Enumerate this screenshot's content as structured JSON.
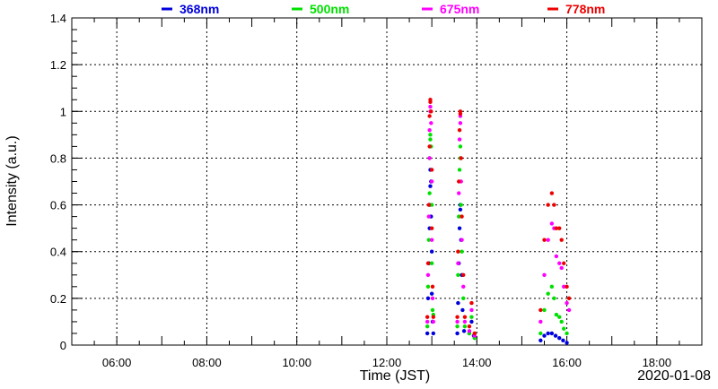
{
  "chart_data": {
    "type": "scatter",
    "title": "",
    "xlabel": "Time (JST)",
    "ylabel": "Intensity (a.u.)",
    "date_label": "2020-01-08",
    "xlim": [
      "05:00",
      "19:00"
    ],
    "ylim": [
      0,
      1.4
    ],
    "x_ticks": [
      "06:00",
      "08:00",
      "10:00",
      "12:00",
      "14:00",
      "16:00",
      "18:00"
    ],
    "y_ticks": [
      "0",
      "0.2",
      "0.4",
      "0.6",
      "0.8",
      "1",
      "1.2",
      "1.4"
    ],
    "grid": true,
    "legend_position": "top",
    "series": [
      {
        "name": "368nm",
        "color": "#0000dd",
        "points": [
          [
            "12:54",
            0.05
          ],
          [
            "12:55",
            0.2
          ],
          [
            "12:56",
            0.35
          ],
          [
            "12:57",
            0.5
          ],
          [
            "12:57",
            0.6
          ],
          [
            "12:58",
            0.68
          ],
          [
            "12:58",
            0.75
          ],
          [
            "12:59",
            0.7
          ],
          [
            "12:59",
            0.55
          ],
          [
            "13:00",
            0.4
          ],
          [
            "13:00",
            0.22
          ],
          [
            "13:01",
            0.1
          ],
          [
            "13:02",
            0.05
          ],
          [
            "13:34",
            0.05
          ],
          [
            "13:35",
            0.18
          ],
          [
            "13:36",
            0.35
          ],
          [
            "13:37",
            0.5
          ],
          [
            "13:38",
            0.6
          ],
          [
            "13:38",
            0.58
          ],
          [
            "13:39",
            0.45
          ],
          [
            "13:40",
            0.3
          ],
          [
            "13:41",
            0.15
          ],
          [
            "13:43",
            0.06
          ],
          [
            "13:50",
            0.05
          ],
          [
            "13:53",
            0.1
          ],
          [
            "13:56",
            0.04
          ],
          [
            "15:25",
            0.02
          ],
          [
            "15:30",
            0.04
          ],
          [
            "15:35",
            0.05
          ],
          [
            "15:40",
            0.05
          ],
          [
            "15:45",
            0.04
          ],
          [
            "15:50",
            0.03
          ],
          [
            "15:55",
            0.02
          ],
          [
            "16:00",
            0.01
          ]
        ]
      },
      {
        "name": "500nm",
        "color": "#00e000",
        "points": [
          [
            "12:54",
            0.08
          ],
          [
            "12:55",
            0.25
          ],
          [
            "12:56",
            0.45
          ],
          [
            "12:57",
            0.65
          ],
          [
            "12:57",
            0.8
          ],
          [
            "12:58",
            0.88
          ],
          [
            "12:58",
            0.9
          ],
          [
            "12:59",
            0.85
          ],
          [
            "13:00",
            0.6
          ],
          [
            "13:00",
            0.35
          ],
          [
            "13:01",
            0.15
          ],
          [
            "13:02",
            0.13
          ],
          [
            "13:34",
            0.08
          ],
          [
            "13:35",
            0.3
          ],
          [
            "13:36",
            0.55
          ],
          [
            "13:37",
            0.75
          ],
          [
            "13:38",
            0.85
          ],
          [
            "13:38",
            0.8
          ],
          [
            "13:39",
            0.6
          ],
          [
            "13:40",
            0.4
          ],
          [
            "13:42",
            0.2
          ],
          [
            "13:44",
            0.08
          ],
          [
            "13:50",
            0.05
          ],
          [
            "13:53",
            0.12
          ],
          [
            "13:57",
            0.03
          ],
          [
            "15:25",
            0.05
          ],
          [
            "15:30",
            0.15
          ],
          [
            "15:35",
            0.22
          ],
          [
            "15:40",
            0.25
          ],
          [
            "15:43",
            0.2
          ],
          [
            "15:46",
            0.13
          ],
          [
            "15:50",
            0.12
          ],
          [
            "15:53",
            0.1
          ],
          [
            "15:56",
            0.07
          ],
          [
            "16:00",
            0.05
          ]
        ]
      },
      {
        "name": "675nm",
        "color": "#ff00ff",
        "points": [
          [
            "12:54",
            0.1
          ],
          [
            "12:55",
            0.3
          ],
          [
            "12:56",
            0.55
          ],
          [
            "12:57",
            0.8
          ],
          [
            "12:57",
            0.92
          ],
          [
            "12:58",
            1.0
          ],
          [
            "12:58",
            1.02
          ],
          [
            "12:59",
            0.95
          ],
          [
            "13:00",
            0.7
          ],
          [
            "13:00",
            0.45
          ],
          [
            "13:01",
            0.2
          ],
          [
            "13:02",
            0.1
          ],
          [
            "13:34",
            0.1
          ],
          [
            "13:35",
            0.35
          ],
          [
            "13:36",
            0.65
          ],
          [
            "13:37",
            0.88
          ],
          [
            "13:38",
            0.98
          ],
          [
            "13:38",
            0.95
          ],
          [
            "13:39",
            0.7
          ],
          [
            "13:40",
            0.45
          ],
          [
            "13:42",
            0.25
          ],
          [
            "13:44",
            0.1
          ],
          [
            "13:50",
            0.06
          ],
          [
            "13:53",
            0.15
          ],
          [
            "13:57",
            0.04
          ],
          [
            "15:25",
            0.1
          ],
          [
            "15:30",
            0.3
          ],
          [
            "15:35",
            0.45
          ],
          [
            "15:40",
            0.52
          ],
          [
            "15:43",
            0.5
          ],
          [
            "15:46",
            0.38
          ],
          [
            "15:50",
            0.35
          ],
          [
            "15:53",
            0.33
          ],
          [
            "15:56",
            0.25
          ],
          [
            "16:00",
            0.18
          ],
          [
            "16:03",
            0.15
          ]
        ]
      },
      {
        "name": "778nm",
        "color": "#ee0000",
        "points": [
          [
            "12:54",
            0.12
          ],
          [
            "12:55",
            0.35
          ],
          [
            "12:56",
            0.6
          ],
          [
            "12:57",
            0.85
          ],
          [
            "12:57",
            0.98
          ],
          [
            "12:58",
            1.04
          ],
          [
            "12:58",
            1.05
          ],
          [
            "12:59",
            1.0
          ],
          [
            "13:00",
            0.75
          ],
          [
            "13:00",
            0.5
          ],
          [
            "13:01",
            0.25
          ],
          [
            "13:02",
            0.12
          ],
          [
            "13:34",
            0.12
          ],
          [
            "13:35",
            0.4
          ],
          [
            "13:36",
            0.7
          ],
          [
            "13:37",
            0.92
          ],
          [
            "13:38",
            1.0
          ],
          [
            "13:38",
            0.99
          ],
          [
            "13:39",
            0.8
          ],
          [
            "13:40",
            0.55
          ],
          [
            "13:42",
            0.3
          ],
          [
            "13:44",
            0.12
          ],
          [
            "13:50",
            0.08
          ],
          [
            "13:53",
            0.18
          ],
          [
            "13:57",
            0.05
          ],
          [
            "15:25",
            0.15
          ],
          [
            "15:30",
            0.45
          ],
          [
            "15:35",
            0.6
          ],
          [
            "15:40",
            0.65
          ],
          [
            "15:43",
            0.6
          ],
          [
            "15:46",
            0.5
          ],
          [
            "15:50",
            0.5
          ],
          [
            "15:53",
            0.45
          ],
          [
            "15:56",
            0.35
          ],
          [
            "16:00",
            0.25
          ],
          [
            "16:03",
            0.2
          ]
        ]
      }
    ]
  }
}
